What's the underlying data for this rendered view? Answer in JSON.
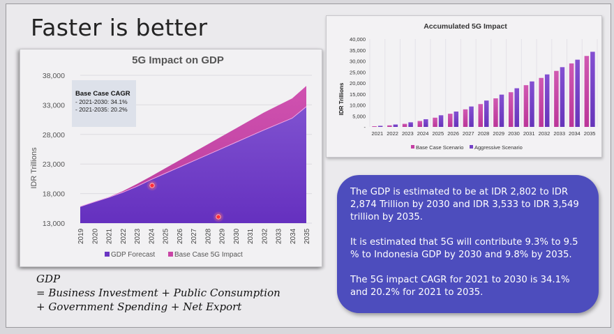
{
  "slide": {
    "title": "Faster is better",
    "formula": {
      "line1": "GDP",
      "line2": "= Business Investment + Public Consumption",
      "line3": "+ Government Spending + Net Export"
    },
    "infobox": {
      "paragraphs": [
        "The GDP is estimated to be at IDR 2,802 to IDR 2,874 Trillion by 2030 and IDR 3,533 to IDR 3,549 trillion by 2035.",
        "It is estimated that 5G will contribute 9.3% to 9.5 % to Indonesia GDP by 2030 and 9.8% by 2035.",
        "The 5G impact CAGR for 2021 to 2030 is 34.1% and 20.2% for 2021 to 2035."
      ]
    },
    "annotation": {
      "title": "Base Case CAGR",
      "line1": "- 2021-2030: 34.1%",
      "line2": "- 2021-2035: 20.2%"
    },
    "colors": {
      "gdp_forecast": "#6a35c2",
      "base_case_impact": "#c945a6",
      "aggressive": "#7441c6",
      "base_case_bar": "#c43fa3",
      "infobox": "#4d4dbd"
    }
  },
  "chart_data": [
    {
      "type": "area",
      "title": "5G Impact on GDP",
      "xlabel": "",
      "ylabel": "IDR Trillions",
      "ylim": [
        13000,
        38000
      ],
      "yticks": [
        "13,000",
        "18,000",
        "23,000",
        "28,000",
        "33,000",
        "38,000"
      ],
      "ytick_values": [
        13000,
        18000,
        23000,
        28000,
        33000,
        38000
      ],
      "categories": [
        "2019",
        "2020",
        "2021",
        "2022",
        "2023",
        "2024",
        "2025",
        "2026",
        "2027",
        "2028",
        "2029",
        "2030",
        "2031",
        "2032",
        "2033",
        "2034",
        "2035"
      ],
      "stacked": true,
      "series": [
        {
          "name": "GDP Forecast",
          "values": [
            15800,
            16600,
            17350,
            18200,
            19200,
            20350,
            21400,
            22450,
            23500,
            24550,
            25600,
            26650,
            27700,
            28750,
            29750,
            30750,
            32700
          ]
        },
        {
          "name": "Base Case 5G Impact",
          "values": [
            0,
            0,
            50,
            200,
            400,
            550,
            850,
            1150,
            1450,
            1750,
            2050,
            2350,
            2650,
            2950,
            3150,
            3350,
            3500
          ]
        }
      ],
      "legend": "bottom",
      "grid": true
    },
    {
      "type": "bar",
      "title": "Accumulated 5G Impact",
      "xlabel": "",
      "ylabel": "IDR Trillions",
      "ylim": [
        0,
        40000
      ],
      "yticks": [
        "-",
        "5,000",
        "10,000",
        "15,000",
        "20,000",
        "25,000",
        "30,000",
        "35,000",
        "40,000"
      ],
      "ytick_values": [
        0,
        5000,
        10000,
        15000,
        20000,
        25000,
        30000,
        35000,
        40000
      ],
      "categories": [
        "2021",
        "2022",
        "2023",
        "2024",
        "2025",
        "2026",
        "2027",
        "2028",
        "2029",
        "2030",
        "2031",
        "2032",
        "2033",
        "2034",
        "2035"
      ],
      "series": [
        {
          "name": "Base Case Scenario",
          "values": [
            300,
            700,
            1400,
            2700,
            4200,
            6000,
            8000,
            10400,
            13000,
            15800,
            19000,
            22300,
            25500,
            28900,
            32300
          ]
        },
        {
          "name": "Aggressive Scenario",
          "values": [
            500,
            1100,
            2100,
            3500,
            5300,
            7000,
            9300,
            12000,
            14700,
            17600,
            20700,
            23900,
            27200,
            30600,
            34200
          ]
        }
      ],
      "legend": "bottom",
      "grid": true
    }
  ]
}
